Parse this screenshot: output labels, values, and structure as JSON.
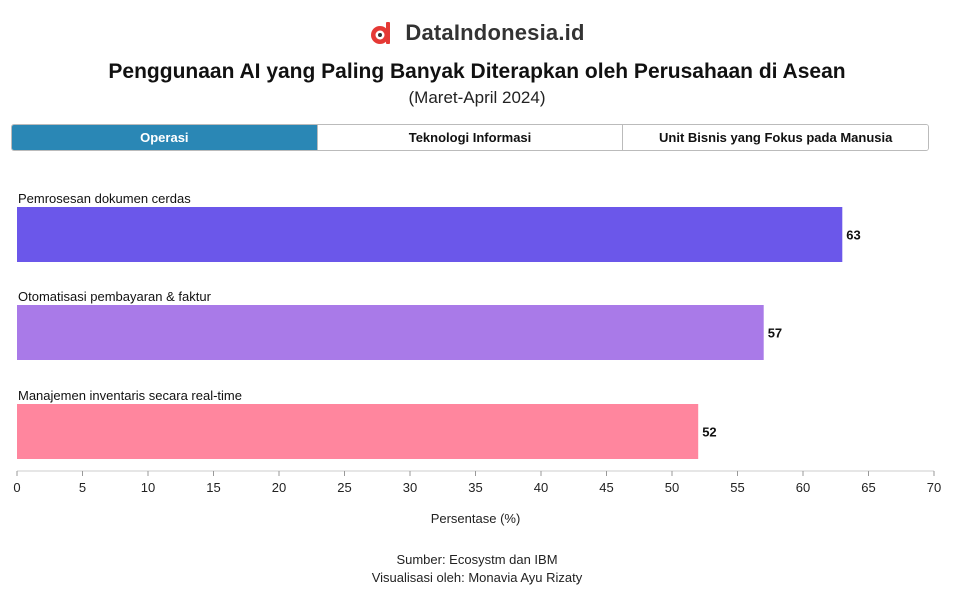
{
  "brand": {
    "name": "DataIndonesia.id",
    "logo_icon": "dataindonesia-logo-icon",
    "logo_color": "#e53935"
  },
  "header": {
    "title": "Penggunaan AI yang Paling Banyak Diterapkan oleh Perusahaan di Asean",
    "subtitle": "(Maret-April 2024)"
  },
  "tabs": [
    {
      "label": "Operasi",
      "active": true
    },
    {
      "label": "Teknologi Informasi",
      "active": false
    },
    {
      "label": "Unit Bisnis yang Fokus pada Manusia",
      "active": false
    }
  ],
  "colors": {
    "tab_active": "#2a87b5"
  },
  "chart_data": {
    "type": "bar",
    "orientation": "horizontal",
    "categories": [
      "Pemrosesan dokumen cerdas",
      "Otomatisasi pembayaran & faktur",
      "Manajemen inventaris secara real-time"
    ],
    "values": [
      63,
      57,
      52
    ],
    "colors": [
      "#6b57ea",
      "#a97ae8",
      "#ff869e"
    ],
    "xlabel": "Persentase (%)",
    "xlim": [
      0,
      70
    ],
    "xticks": [
      0,
      5,
      10,
      15,
      20,
      25,
      30,
      35,
      40,
      45,
      50,
      55,
      60,
      65,
      70
    ],
    "grid": false,
    "data_labels": true
  },
  "footer": {
    "source": "Sumber: Ecosystm dan IBM",
    "credit": "Visualisasi oleh: Monavia Ayu Rizaty"
  }
}
